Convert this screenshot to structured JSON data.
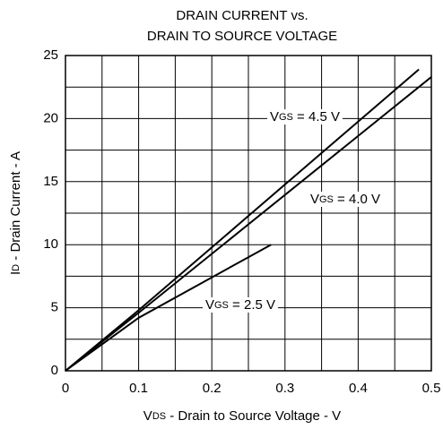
{
  "chart_data": {
    "type": "line",
    "title": [
      "DRAIN CURRENT vs.",
      "DRAIN TO SOURCE VOLTAGE"
    ],
    "xlabel": "VDS - Drain to Source Voltage - V",
    "ylabel": "ID - Drain Current - A",
    "xlim": [
      0,
      0.5
    ],
    "ylim": [
      0,
      25
    ],
    "xticks": [
      0,
      0.1,
      0.2,
      0.3,
      0.4,
      0.5
    ],
    "yticks": [
      0,
      5,
      10,
      15,
      20,
      25
    ],
    "x_minor_ticks": [
      0.05,
      0.15,
      0.25,
      0.35,
      0.45
    ],
    "y_minor_ticks": [
      2.5,
      7.5,
      12.5,
      17.5,
      22.5
    ],
    "grid": true,
    "series": [
      {
        "name": "VGS = 4.5 V",
        "color": "#000000",
        "x": [
          0,
          0.1,
          0.483
        ],
        "y": [
          0,
          4.8,
          23.9
        ]
      },
      {
        "name": "VGS = 4.0 V",
        "color": "#000000",
        "x": [
          0,
          0.1,
          0.5
        ],
        "y": [
          0,
          4.6,
          23.3
        ]
      },
      {
        "name": "VGS = 2.5 V",
        "color": "#000000",
        "x": [
          0,
          0.1,
          0.281
        ],
        "y": [
          0,
          4.2,
          10.0
        ]
      }
    ]
  }
}
